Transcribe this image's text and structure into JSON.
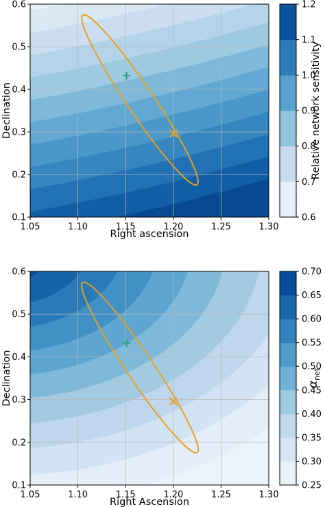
{
  "chart_data": [
    {
      "type": "contour",
      "xlabel": "Right ascension",
      "ylabel": "Declination",
      "xlim": [
        1.05,
        1.3
      ],
      "ylim": [
        0.1,
        0.6
      ],
      "xticks": [
        "1.05",
        "1.10",
        "1.15",
        "1.20",
        "1.25",
        "1.30"
      ],
      "yticks": [
        "0.1",
        "0.2",
        "0.3",
        "0.4",
        "0.5",
        "0.6"
      ],
      "grid": true,
      "colorbar": {
        "label": "Relative network sensitivity",
        "range": [
          0.6,
          1.2
        ],
        "ticks": [
          "0.6",
          "0.7",
          "0.8",
          "0.9",
          "1.0",
          "1.1",
          "1.2"
        ],
        "colormap": "Blues"
      },
      "ellipse": {
        "x": 1.165,
        "y": 0.375,
        "semi_major_dec": 0.24,
        "semi_minor_ra": 0.014,
        "color": "#e8a020"
      },
      "markers": [
        {
          "symbol": "plus",
          "x": 1.151,
          "y": 0.432,
          "color": "#22a07a"
        },
        {
          "symbol": "cross",
          "x": 1.2,
          "y": 0.296,
          "color": "#e8a020"
        }
      ]
    },
    {
      "type": "contour",
      "xlabel": "Right Ascension",
      "ylabel": "Declination",
      "xlim": [
        1.05,
        1.3
      ],
      "ylim": [
        0.1,
        0.6
      ],
      "xticks": [
        "1.05",
        "1.10",
        "1.15",
        "1.20",
        "1.25",
        "1.30"
      ],
      "yticks": [
        "0.1",
        "0.2",
        "0.3",
        "0.4",
        "0.5",
        "0.6"
      ],
      "grid": true,
      "colorbar": {
        "label": "α",
        "label_sub": "net",
        "range": [
          0.25,
          0.7
        ],
        "ticks": [
          "0.25",
          "0.30",
          "0.35",
          "0.40",
          "0.45",
          "0.50",
          "0.55",
          "0.60",
          "0.65",
          "0.70"
        ],
        "colormap": "Blues"
      },
      "ellipse": {
        "x": 1.165,
        "y": 0.375,
        "semi_major_dec": 0.24,
        "semi_minor_ra": 0.014,
        "color": "#e8a020"
      },
      "markers": [
        {
          "symbol": "plus",
          "x": 1.151,
          "y": 0.432,
          "color": "#22a07a"
        },
        {
          "symbol": "cross",
          "x": 1.2,
          "y": 0.296,
          "color": "#e8a020"
        }
      ]
    }
  ]
}
